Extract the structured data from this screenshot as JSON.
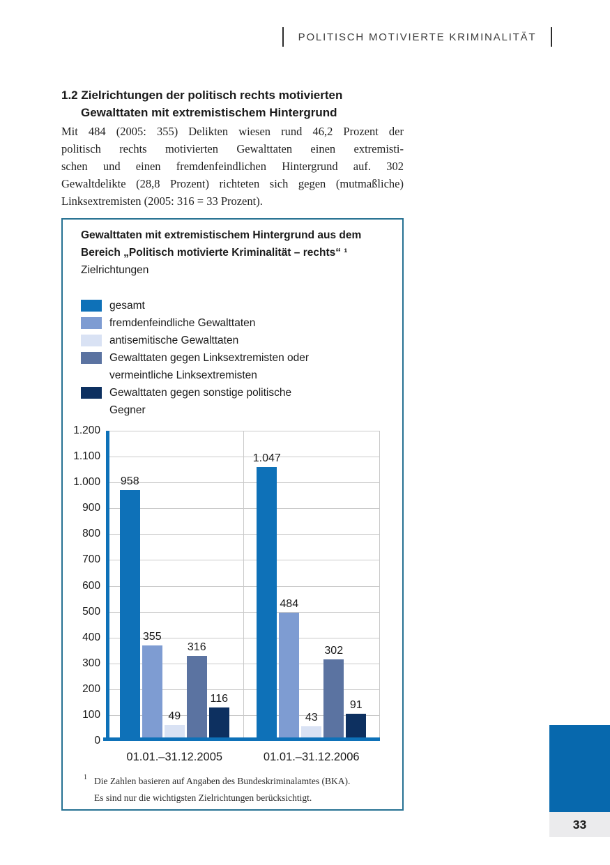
{
  "header": {
    "title": "POLITISCH MOTIVIERTE KRIMINALITÄT"
  },
  "section": {
    "heading_line1": "1.2 Zielrichtungen der politisch rechts motivierten",
    "heading_line2": "Gewalttaten mit extremistischem Hintergrund",
    "body_lines": [
      "Mit 484 (2005: 355) Delikten wiesen rund 46,2 Prozent der",
      "politisch rechts motivierten Gewalttaten einen extremisti-",
      "schen und einen fremdenfeindlichen Hintergrund auf. 302",
      "Gewaltdelikte (28,8 Prozent) richteten sich gegen (mutmaßliche)",
      "Linksextremisten (2005: 316 = 33 Prozent)."
    ]
  },
  "chart_box": {
    "title_line1": "Gewalttaten mit extremistischem Hintergrund aus dem",
    "title_line2": "Bereich „Politisch motivierte Kriminalität – rechts“ ¹",
    "subtitle": "Zielrichtungen",
    "footnote_marker": "1",
    "footnote_line1": "Die Zahlen basieren auf Angaben des Bundeskriminalamtes (BKA).",
    "footnote_line2": "Es sind nur die wichtigsten Zielrichtungen berücksichtigt."
  },
  "chart_data": {
    "type": "bar",
    "title": "Gewalttaten mit extremistischem Hintergrund aus dem Bereich „Politisch motivierte Kriminalität – rechts“ — Zielrichtungen",
    "categories": [
      "01.01.–31.12.2005",
      "01.01.–31.12.2006"
    ],
    "series": [
      {
        "name": "gesamt",
        "color": "#0e71b8",
        "values": [
          958,
          1047
        ],
        "labels": [
          "958",
          "1.047"
        ]
      },
      {
        "name": "fremdenfeindliche Gewalttaten",
        "color": "#7e9cd2",
        "values": [
          355,
          484
        ],
        "labels": [
          "355",
          "484"
        ]
      },
      {
        "name": "antisemitische Gewalttaten",
        "color": "#d9e2f4",
        "values": [
          49,
          43
        ],
        "labels": [
          "49",
          "43"
        ]
      },
      {
        "name": "Gewalttaten gegen Linksextremisten oder vermeintliche Linksextremisten",
        "color": "#5b73a1",
        "values": [
          316,
          302
        ],
        "labels": [
          "316",
          "302"
        ]
      },
      {
        "name": "Gewalttaten gegen sonstige politische Gegner",
        "color": "#0d3060",
        "values": [
          116,
          91
        ],
        "labels": [
          "116",
          "91"
        ]
      }
    ],
    "y_ticks": [
      {
        "label": "1.200",
        "value": 1200
      },
      {
        "label": "1.100",
        "value": 1100
      },
      {
        "label": "1.000",
        "value": 1000
      },
      {
        "label": "900",
        "value": 900
      },
      {
        "label": "800",
        "value": 800
      },
      {
        "label": "700",
        "value": 700
      },
      {
        "label": "600",
        "value": 600
      },
      {
        "label": "500",
        "value": 500
      },
      {
        "label": "400",
        "value": 400
      },
      {
        "label": "300",
        "value": 300
      },
      {
        "label": "200",
        "value": 200
      },
      {
        "label": "100",
        "value": 100
      },
      {
        "label": "0",
        "value": 0
      }
    ],
    "ylim": [
      0,
      1200
    ],
    "xlabel": "",
    "ylabel": "",
    "grid": true,
    "legend_position": "top-left",
    "axis_color": "#0e71b8"
  },
  "page": {
    "number": "33"
  },
  "colors": {
    "box_border": "#267192",
    "gridline": "#c9c9c9",
    "corner_blue": "#0768ad",
    "corner_gray": "#ebebed"
  }
}
